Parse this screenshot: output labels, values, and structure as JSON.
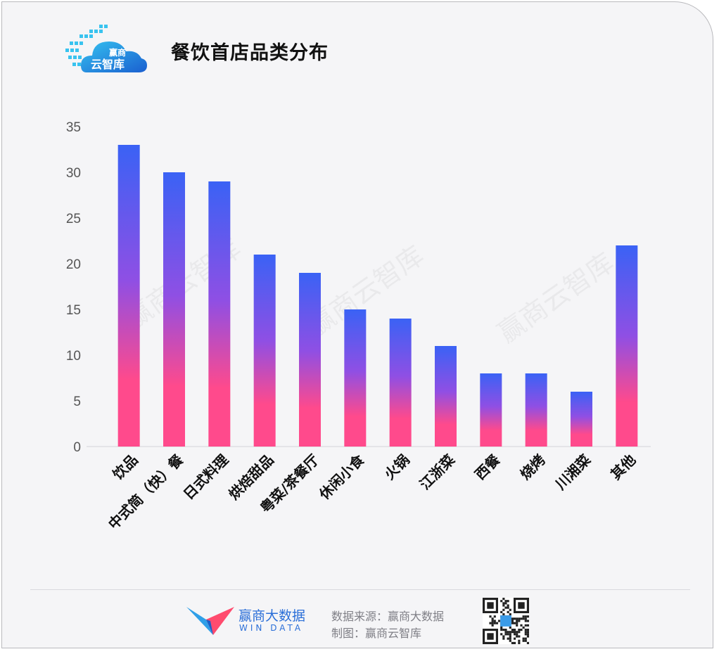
{
  "header": {
    "title": "餐饮首店品类分布",
    "logo_text_line1": "赢商",
    "logo_text_line2": "云智库"
  },
  "watermark": "赢商云智库",
  "colors": {
    "bar_top": "#3a62f5",
    "bar_mid": "#8f4fe4",
    "bar_bottom": "#ff4a8c",
    "axis": "#d4d4d8",
    "tick": "#555555"
  },
  "chart_data": {
    "type": "bar",
    "title": "餐饮首店品类分布",
    "categories": [
      "饮品",
      "中式简（快）餐",
      "日式料理",
      "烘焙甜品",
      "粤菜/茶餐厅",
      "休闲小食",
      "火锅",
      "江浙菜",
      "西餐",
      "烧烤",
      "川湘菜",
      "其他"
    ],
    "values": [
      33,
      30,
      29,
      21,
      19,
      15,
      14,
      11,
      8,
      8,
      6,
      22
    ],
    "yticks": [
      0,
      5,
      10,
      15,
      20,
      25,
      30,
      35
    ],
    "ylim": [
      0,
      35
    ],
    "xlabel": "",
    "ylabel": "",
    "grid": false
  },
  "footer": {
    "brand_name": "赢商大数据",
    "brand_en": "WIN DATA",
    "source": "数据来源：赢商大数据",
    "made_by": "制图：赢商云智库",
    "qr_icon": "qr-code-icon"
  }
}
